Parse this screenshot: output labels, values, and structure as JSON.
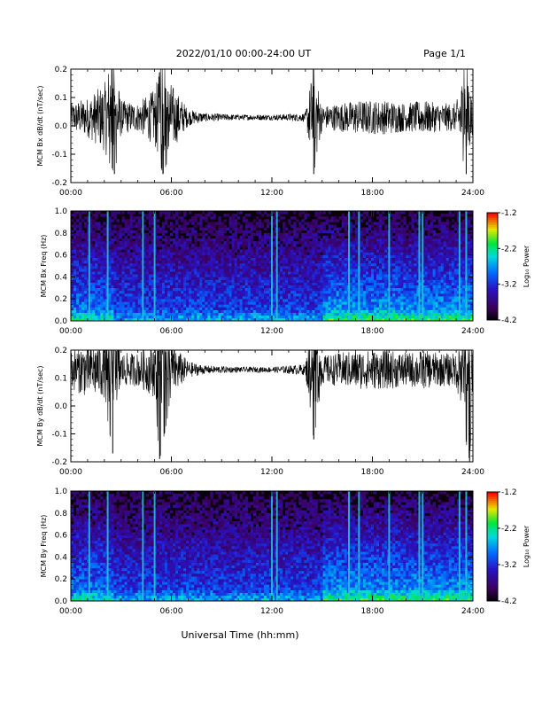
{
  "header": {
    "title": "2022/01/10  00:00-24:00 UT",
    "page": "Page 1/1"
  },
  "footer": {
    "xlabel": "Universal Time (hh:mm)"
  },
  "colorbar": {
    "label": "Log₁₀ Power",
    "ticks": [
      "-1.2",
      "-2.2",
      "-3.2",
      "-4.2"
    ],
    "range": [
      -4.2,
      -1.2
    ]
  },
  "chart_data": [
    {
      "type": "line",
      "ylabel": "MCM Bx dB/dt (nT/sec)",
      "xlim": [
        0,
        24
      ],
      "ylim": [
        -0.2,
        0.2
      ],
      "x_ticks": [
        "00:00",
        "06:00",
        "12:00",
        "18:00",
        "24:00"
      ],
      "y_ticks": [
        "0.2",
        "0.1",
        "0.0",
        "-0.1",
        "-0.2"
      ],
      "baseline": 0.03,
      "series": [
        {
          "x_hours": [
            0,
            1,
            2,
            2.6,
            3,
            4,
            5,
            5.5,
            6,
            7,
            8,
            10,
            12,
            14,
            14.5,
            15,
            16,
            17,
            18,
            19,
            20,
            21,
            22,
            23,
            23.6,
            24
          ],
          "amplitude": [
            0.05,
            0.07,
            0.12,
            0.2,
            0.06,
            0.05,
            0.1,
            0.2,
            0.12,
            0.03,
            0.015,
            0.01,
            0.01,
            0.015,
            0.2,
            0.04,
            0.05,
            0.06,
            0.06,
            0.06,
            0.05,
            0.06,
            0.05,
            0.05,
            0.2,
            0.05
          ]
        }
      ]
    },
    {
      "type": "heatmap",
      "ylabel": "MCM Bx Freq (Hz)",
      "xlim": [
        0,
        24
      ],
      "ylim": [
        0,
        1
      ],
      "x_ticks": [
        "00:00",
        "06:00",
        "12:00",
        "18:00",
        "24:00"
      ],
      "y_ticks": [
        "1.0",
        "0.8",
        "0.6",
        "0.4",
        "0.2",
        "0.0"
      ],
      "bright_lines_hours": [
        1.1,
        2.2,
        4.3,
        5.0,
        12.0,
        12.3,
        16.6,
        17.2,
        19.0,
        20.8,
        21.0,
        23.2,
        23.6
      ]
    },
    {
      "type": "line",
      "ylabel": "MCM By dB/dt (nT/sec)",
      "xlim": [
        0,
        24
      ],
      "ylim": [
        -0.2,
        0.2
      ],
      "x_ticks": [
        "00:00",
        "06:00",
        "12:00",
        "18:00",
        "24:00"
      ],
      "y_ticks": [
        "0.2",
        "0.1",
        "0.0",
        "-0.1",
        "-0.2"
      ],
      "baseline": 0.13,
      "series": [
        {
          "x_hours": [
            0,
            1,
            2,
            2.5,
            3,
            4,
            5,
            5.3,
            6,
            7,
            8,
            10,
            12,
            14,
            14.5,
            15,
            16,
            17,
            18,
            19,
            20,
            21,
            22,
            23,
            23.8,
            24
          ],
          "amplitude": [
            0.07,
            0.1,
            0.1,
            0.3,
            0.06,
            0.06,
            0.1,
            0.32,
            0.1,
            0.03,
            0.015,
            0.01,
            0.01,
            0.02,
            0.25,
            0.05,
            0.06,
            0.07,
            0.07,
            0.07,
            0.06,
            0.07,
            0.06,
            0.06,
            0.33,
            0.06
          ]
        }
      ]
    },
    {
      "type": "heatmap",
      "ylabel": "MCM By Freq (Hz)",
      "xlim": [
        0,
        24
      ],
      "ylim": [
        0,
        1
      ],
      "x_ticks": [
        "00:00",
        "06:00",
        "12:00",
        "18:00",
        "24:00"
      ],
      "y_ticks": [
        "1.0",
        "0.8",
        "0.6",
        "0.4",
        "0.2",
        "0.0"
      ],
      "bright_lines_hours": [
        1.1,
        2.2,
        4.3,
        5.0,
        12.0,
        12.3,
        16.6,
        17.2,
        19.0,
        20.8,
        21.0,
        23.2,
        23.6
      ]
    }
  ]
}
